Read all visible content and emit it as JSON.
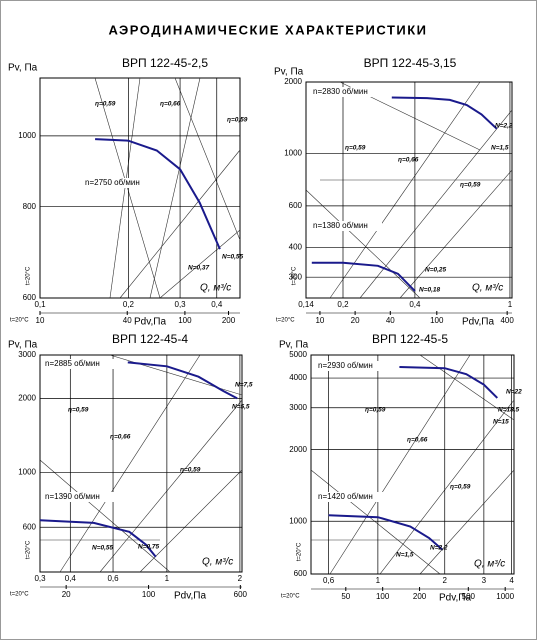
{
  "heading": "АЭРОДИНАМИЧЕСКИЕ ХАРАКТЕРИСТИКИ",
  "chart_data": [
    {
      "type": "line",
      "title": "ВРП 122-45-2,5",
      "ylabel": "Pv, Па",
      "xlabel": "Q, м³/с",
      "x2label": "Pdv,Па",
      "t_label": "t=20°С",
      "log_scale": true,
      "grid": true,
      "xlim": [
        0.1,
        0.48
      ],
      "ylim": [
        600,
        1200
      ],
      "x2lim": [
        10,
        240
      ],
      "xticks": [
        {
          "value": 0.1,
          "label": "0,1"
        },
        {
          "value": 0.2,
          "label": "0,2"
        },
        {
          "value": 0.3,
          "label": "0,3"
        },
        {
          "value": 0.4,
          "label": "0,4"
        }
      ],
      "yticks": [
        600,
        800,
        1000
      ],
      "x2ticks": [
        10,
        40,
        100,
        200
      ],
      "series": [
        {
          "name": "n=2750 об/мин",
          "color": "#1a1a8c",
          "x": [
            0.154,
            0.2,
            0.25,
            0.3,
            0.35,
            0.41
          ],
          "values": [
            990,
            985,
            955,
            900,
            810,
            700
          ]
        }
      ],
      "annotations": [
        "η=0,59",
        "η=0,66",
        "η=0,59",
        "N=0,55",
        "N=0,37"
      ]
    },
    {
      "type": "line",
      "title": "ВРП 122-45-3,15",
      "ylabel": "Pv, Па",
      "xlabel": "Q, м³/с",
      "x2label": "Pdv,Па",
      "t_label": "t=20°С",
      "log_scale": true,
      "grid": true,
      "xlim": [
        0.14,
        1.02
      ],
      "ylim": [
        245,
        2000
      ],
      "x2lim": [
        7.6,
        440
      ],
      "xticks": [
        {
          "value": 0.14,
          "label": "0,14"
        },
        {
          "value": 0.2,
          "label": "0,2"
        },
        {
          "value": 0.4,
          "label": "0,4"
        },
        1
      ],
      "yticks": [
        300,
        400,
        600,
        1000,
        2000
      ],
      "x2ticks": [
        10,
        20,
        40,
        100,
        400
      ],
      "series": [
        {
          "name": "n=2830 об/мин",
          "color": "#1a1a8c",
          "x": [
            0.32,
            0.45,
            0.56,
            0.66,
            0.76,
            0.88
          ],
          "values": [
            1720,
            1710,
            1680,
            1600,
            1460,
            1270
          ]
        },
        {
          "name": "n=1380 об/мин",
          "color": "#1a1a8c",
          "x": [
            0.148,
            0.2,
            0.28,
            0.34,
            0.4
          ],
          "values": [
            345,
            345,
            335,
            310,
            262
          ]
        }
      ],
      "annotations": [
        "η=0,59",
        "η=0,66",
        "η=0,59",
        "N=2,2",
        "N=1,5",
        "N=0,25",
        "N=0,18"
      ]
    },
    {
      "type": "line",
      "title": "ВРП 122-45-4",
      "ylabel": "Pv, Па",
      "xlabel": "Q, м³/с",
      "x2label": "Pdv,Па",
      "t_label": "t=20°С",
      "log_scale": true,
      "grid": true,
      "xlim": [
        0.3,
        2.04
      ],
      "ylim": [
        395,
        3000
      ],
      "x2lim": [
        12,
        620
      ],
      "xticks": [
        {
          "value": 0.3,
          "label": "0,3"
        },
        {
          "value": 0.4,
          "label": "0,4"
        },
        {
          "value": 0.6,
          "label": "0,6"
        },
        1,
        2
      ],
      "yticks": [
        600,
        1000,
        2000,
        3000
      ],
      "x2ticks": [
        20,
        100,
        600
      ],
      "series": [
        {
          "name": "n=2885 об/мин",
          "color": "#1a1a8c",
          "x": [
            0.69,
            1.0,
            1.35,
            1.7,
            1.95
          ],
          "values": [
            2800,
            2700,
            2450,
            2150,
            2000
          ]
        },
        {
          "name": "n=1390 об/мин",
          "color": "#1a1a8c",
          "x": [
            0.3,
            0.5,
            0.7,
            0.82,
            0.9
          ],
          "values": [
            640,
            625,
            575,
            510,
            455
          ]
        }
      ],
      "annotations": [
        "η=0,59",
        "η=0,66",
        "η=0,59",
        "N=7,5",
        "N=5,5",
        "N=0,55",
        "N=0,75"
      ]
    },
    {
      "type": "line",
      "title": "ВРП 122-45-5",
      "ylabel": "Pv, Па",
      "xlabel": "Q, м³/с",
      "x2label": "Pdv,Па",
      "t_label": "t=20°С",
      "log_scale": true,
      "grid": true,
      "xlim": [
        0.5,
        4.1
      ],
      "ylim": [
        600,
        5000
      ],
      "x2lim": [
        26,
        1180
      ],
      "xticks": [
        {
          "value": 0.6,
          "label": "0,6"
        },
        1,
        2,
        3,
        4
      ],
      "yticks": [
        600,
        1000,
        2000,
        3000,
        4000,
        5000
      ],
      "x2ticks": [
        50,
        100,
        200,
        500,
        1000
      ],
      "series": [
        {
          "name": "n=2930 об/мин",
          "color": "#1a1a8c",
          "x": [
            1.25,
            2.0,
            2.5,
            3.0,
            3.45
          ],
          "values": [
            4450,
            4400,
            4150,
            3750,
            3300
          ]
        },
        {
          "name": "n=1420 об/мин",
          "color": "#1a1a8c",
          "x": [
            0.6,
            1.0,
            1.4,
            1.7,
            1.95
          ],
          "values": [
            1060,
            1040,
            950,
            850,
            760
          ]
        }
      ],
      "annotations": [
        "η=0,59",
        "η=0,66",
        "η=0,59",
        "N=22",
        "N=18,5",
        "N=15",
        "N=1,5",
        "N=2,2"
      ]
    }
  ]
}
